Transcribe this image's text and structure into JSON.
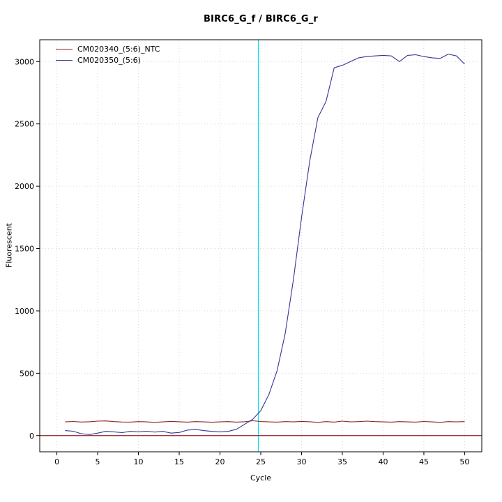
{
  "title": "BIRC6_G_f / BIRC6_G_r",
  "chart_data": {
    "type": "line",
    "title": "BIRC6_G_f / BIRC6_G_r",
    "xlabel": "Cycle",
    "ylabel": "Fluorescent",
    "xlim": [
      -2.1,
      52.1
    ],
    "ylim": [
      -130,
      3175
    ],
    "x_ticks": [
      0,
      5,
      10,
      15,
      20,
      25,
      30,
      35,
      40,
      45,
      50
    ],
    "y_ticks": [
      0,
      500,
      1000,
      1500,
      2000,
      2500,
      3000
    ],
    "grid": true,
    "grid_color": "#d9d9d9",
    "legend_position": "top-left",
    "baseline_hline": {
      "y": 0,
      "color": "#8b2323"
    },
    "threshold_vline": {
      "x": 24.7,
      "color": "#00e0e8"
    },
    "x": [
      1,
      2,
      3,
      4,
      5,
      6,
      7,
      8,
      9,
      10,
      11,
      12,
      13,
      14,
      15,
      16,
      17,
      18,
      19,
      20,
      21,
      22,
      23,
      24,
      25,
      26,
      27,
      28,
      29,
      30,
      31,
      32,
      33,
      34,
      35,
      36,
      37,
      38,
      39,
      40,
      41,
      42,
      43,
      44,
      45,
      46,
      47,
      48,
      49,
      50
    ],
    "series": [
      {
        "name": "CM020340_(5:6)_NTC",
        "color": "#8b2323",
        "values": [
          110,
          113,
          109,
          111,
          116,
          118,
          112,
          109,
          108,
          112,
          110,
          106,
          110,
          114,
          111,
          108,
          112,
          110,
          107,
          110,
          112,
          108,
          111,
          119,
          113,
          110,
          108,
          112,
          110,
          114,
          111,
          106,
          112,
          108,
          116,
          110,
          112,
          116,
          112,
          110,
          108,
          112,
          110,
          108,
          113,
          110,
          106,
          112,
          110,
          112
        ]
      },
      {
        "name": "CM020350_(5:6)",
        "color": "#333399",
        "values": [
          40,
          35,
          15,
          8,
          20,
          34,
          30,
          24,
          34,
          30,
          35,
          28,
          34,
          20,
          25,
          44,
          50,
          40,
          34,
          30,
          34,
          50,
          90,
          130,
          200,
          330,
          520,
          820,
          1250,
          1750,
          2200,
          2550,
          2680,
          2950,
          2970,
          3000,
          3030,
          3040,
          3045,
          3050,
          3045,
          3000,
          3050,
          3055,
          3040,
          3030,
          3025,
          3060,
          3045,
          2980
        ]
      }
    ]
  }
}
